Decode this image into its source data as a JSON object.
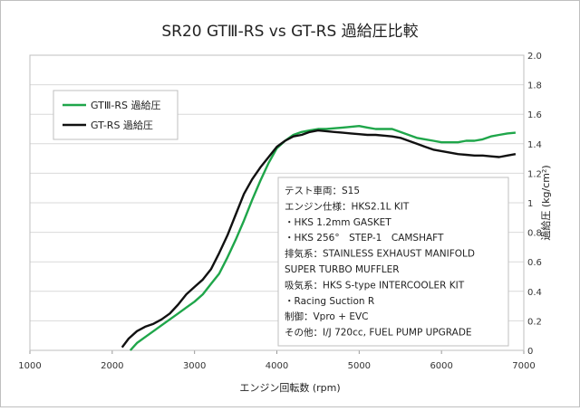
{
  "chart_data": {
    "type": "line",
    "title": "SR20 GTⅢ-RS vs GT-RS 過給圧比較",
    "xlabel": "エンジン回転数 (rpm)",
    "ylabel": "過給圧 (kg/cm²)",
    "xlim": [
      1000,
      7000
    ],
    "ylim": [
      0,
      2.0
    ],
    "x_ticks": [
      "1000",
      "2000",
      "3000",
      "4000",
      "5000",
      "6000",
      "7000"
    ],
    "y_ticks": [
      "0",
      "0.2",
      "0.4",
      "0.6",
      "0.8",
      "1",
      "1.2",
      "1.4",
      "1.6",
      "1.8",
      "2.0"
    ],
    "grid": true,
    "legend_position": "top-left",
    "series": [
      {
        "name": "GTⅢ-RS 過給圧",
        "color": "#1fa64a",
        "points": [
          [
            2220,
            0.0
          ],
          [
            2300,
            0.05
          ],
          [
            2400,
            0.09
          ],
          [
            2500,
            0.13
          ],
          [
            2600,
            0.17
          ],
          [
            2700,
            0.21
          ],
          [
            2800,
            0.25
          ],
          [
            2900,
            0.29
          ],
          [
            3000,
            0.33
          ],
          [
            3100,
            0.38
          ],
          [
            3200,
            0.45
          ],
          [
            3300,
            0.52
          ],
          [
            3400,
            0.63
          ],
          [
            3500,
            0.75
          ],
          [
            3600,
            0.88
          ],
          [
            3700,
            1.02
          ],
          [
            3800,
            1.15
          ],
          [
            3900,
            1.27
          ],
          [
            4000,
            1.37
          ],
          [
            4100,
            1.42
          ],
          [
            4200,
            1.46
          ],
          [
            4300,
            1.48
          ],
          [
            4400,
            1.49
          ],
          [
            4500,
            1.5
          ],
          [
            4600,
            1.5
          ],
          [
            4700,
            1.505
          ],
          [
            4800,
            1.51
          ],
          [
            4900,
            1.515
          ],
          [
            5000,
            1.52
          ],
          [
            5100,
            1.51
          ],
          [
            5200,
            1.5
          ],
          [
            5300,
            1.5
          ],
          [
            5400,
            1.5
          ],
          [
            5500,
            1.48
          ],
          [
            5600,
            1.46
          ],
          [
            5700,
            1.44
          ],
          [
            5800,
            1.43
          ],
          [
            5900,
            1.42
          ],
          [
            6000,
            1.41
          ],
          [
            6100,
            1.41
          ],
          [
            6200,
            1.41
          ],
          [
            6300,
            1.42
          ],
          [
            6400,
            1.42
          ],
          [
            6500,
            1.43
          ],
          [
            6600,
            1.45
          ],
          [
            6700,
            1.46
          ],
          [
            6800,
            1.47
          ],
          [
            6900,
            1.475
          ]
        ]
      },
      {
        "name": "GT-RS 過給圧",
        "color": "#111111",
        "points": [
          [
            2120,
            0.02
          ],
          [
            2200,
            0.08
          ],
          [
            2300,
            0.13
          ],
          [
            2400,
            0.16
          ],
          [
            2500,
            0.18
          ],
          [
            2600,
            0.21
          ],
          [
            2700,
            0.25
          ],
          [
            2800,
            0.31
          ],
          [
            2900,
            0.38
          ],
          [
            3000,
            0.43
          ],
          [
            3100,
            0.48
          ],
          [
            3200,
            0.55
          ],
          [
            3300,
            0.66
          ],
          [
            3400,
            0.78
          ],
          [
            3500,
            0.92
          ],
          [
            3600,
            1.06
          ],
          [
            3700,
            1.16
          ],
          [
            3800,
            1.24
          ],
          [
            3900,
            1.31
          ],
          [
            4000,
            1.38
          ],
          [
            4100,
            1.42
          ],
          [
            4200,
            1.45
          ],
          [
            4300,
            1.46
          ],
          [
            4400,
            1.48
          ],
          [
            4500,
            1.49
          ],
          [
            4600,
            1.485
          ],
          [
            4700,
            1.48
          ],
          [
            4800,
            1.475
          ],
          [
            4900,
            1.47
          ],
          [
            5000,
            1.465
          ],
          [
            5100,
            1.46
          ],
          [
            5200,
            1.46
          ],
          [
            5300,
            1.455
          ],
          [
            5400,
            1.45
          ],
          [
            5500,
            1.44
          ],
          [
            5600,
            1.42
          ],
          [
            5700,
            1.4
          ],
          [
            5800,
            1.38
          ],
          [
            5900,
            1.36
          ],
          [
            6000,
            1.35
          ],
          [
            6100,
            1.34
          ],
          [
            6200,
            1.33
          ],
          [
            6300,
            1.325
          ],
          [
            6400,
            1.32
          ],
          [
            6500,
            1.32
          ],
          [
            6600,
            1.315
          ],
          [
            6700,
            1.31
          ],
          [
            6800,
            1.32
          ],
          [
            6900,
            1.33
          ]
        ]
      }
    ],
    "annotation_lines": [
      "テスト車両：S15",
      "エンジン仕様：HKS2.1L KIT",
      "・HKS 1.2mm GASKET",
      "・HKS 256°　STEP-1　CAMSHAFT",
      "排気系：STAINLESS EXHAUST MANIFOLD",
      "SUPER TURBO MUFFLER",
      "吸気系：HKS S-type INTERCOOLER KIT",
      "・Racing Suction R",
      "制御：Vpro + EVC",
      "その他：I/J 720cc, FUEL PUMP UPGRADE"
    ]
  }
}
